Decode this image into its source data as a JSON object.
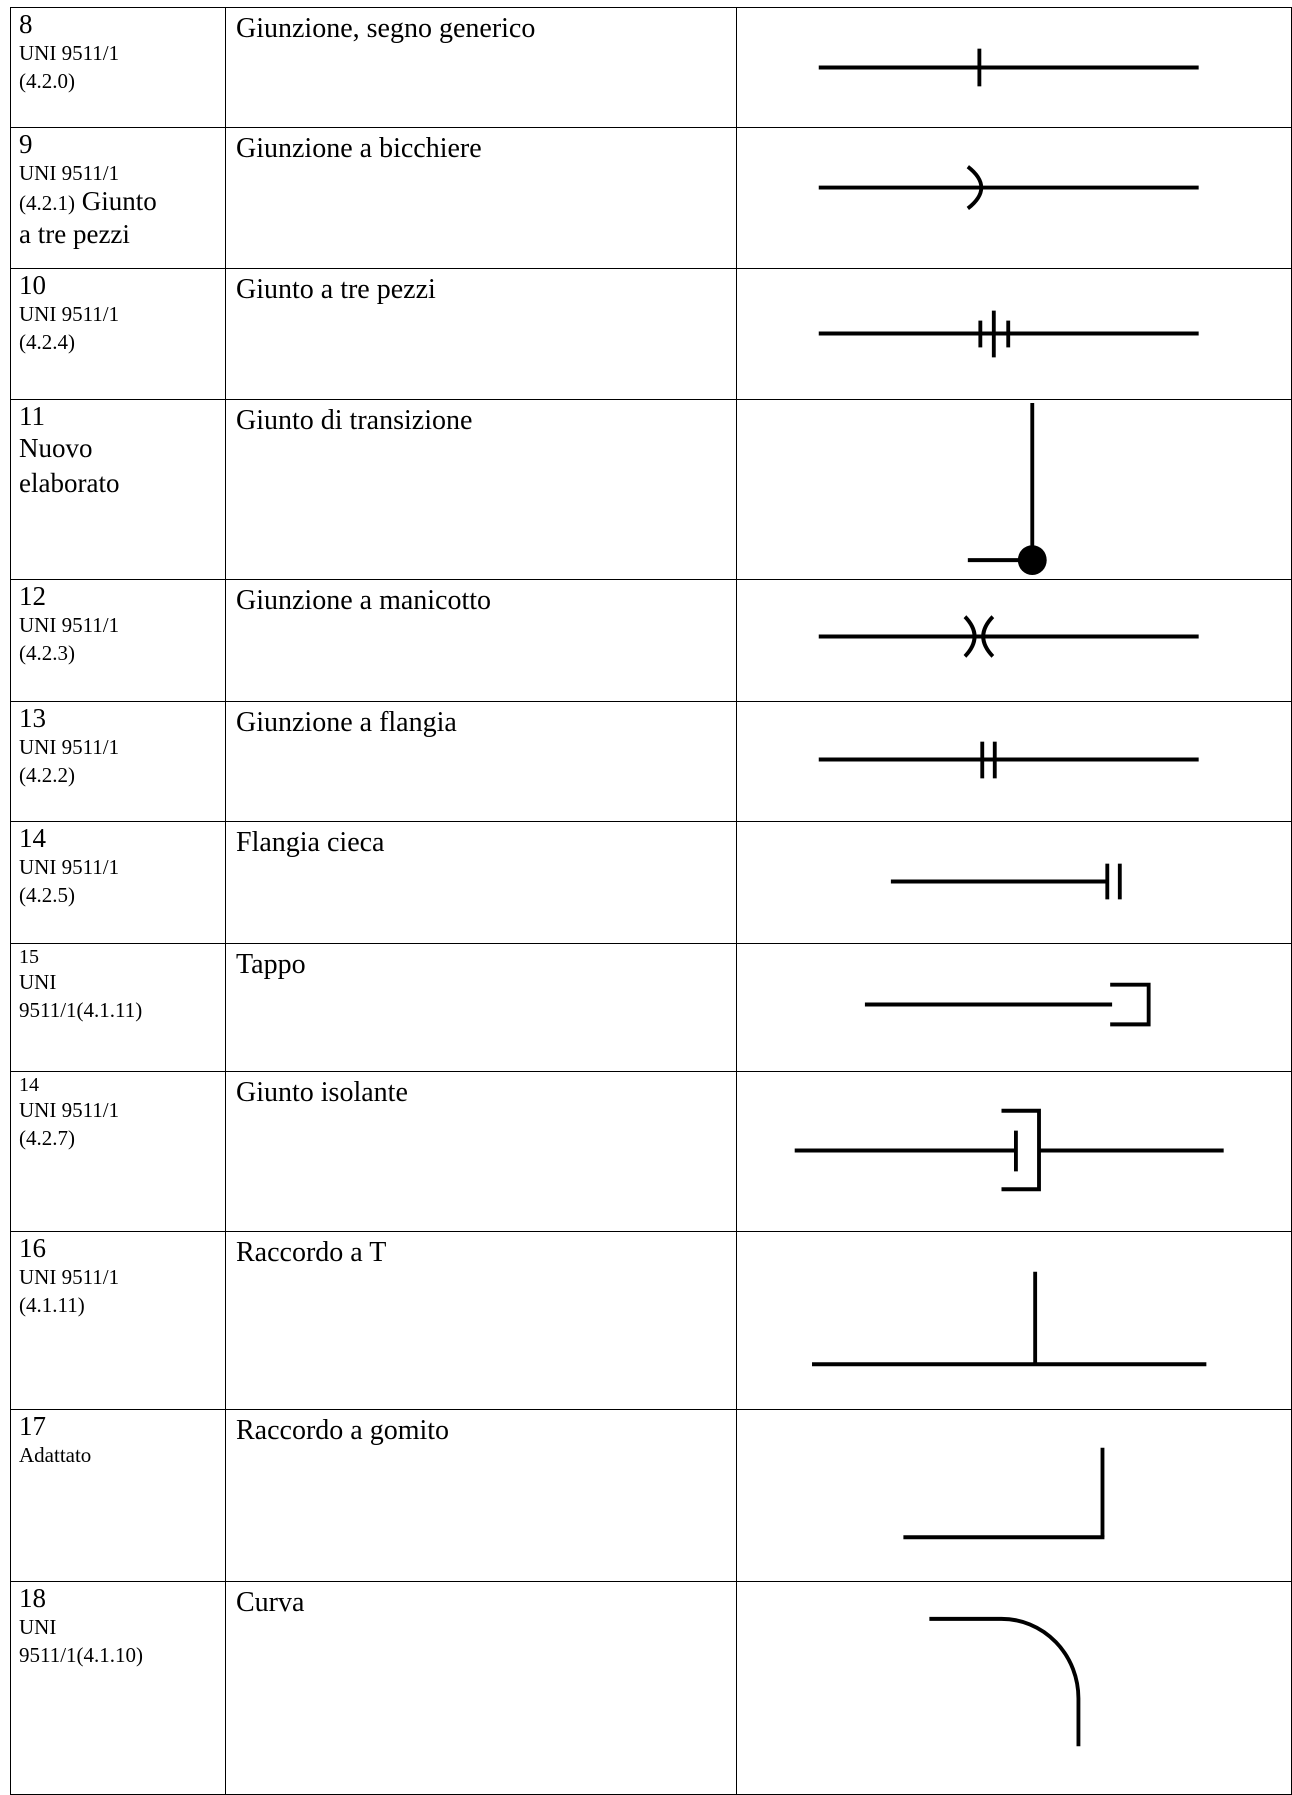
{
  "rows": [
    {
      "num": "8",
      "std": "UNI 9511/1",
      "std2": "(4.2.0)",
      "desc": "Giunzione, segno generico",
      "symbol": "generic-joint-icon"
    },
    {
      "num": "9",
      "std": "UNI 9511/1",
      "std2": "(4.2.1)",
      "std2_tail": " Giunto",
      "std3": "a tre pezzi",
      "desc": "Giunzione a bicchiere",
      "symbol": "socket-joint-icon"
    },
    {
      "num": "10",
      "std": "UNI 9511/1",
      "std2": "(4.2.4)",
      "desc": "Giunto a tre pezzi",
      "symbol": "three-piece-joint-icon"
    },
    {
      "num": "11",
      "std": "Nuovo",
      "std2": "elaborato",
      "desc": "Giunto di transizione",
      "symbol": "transition-joint-icon"
    },
    {
      "num": "12",
      "std": "UNI 9511/1",
      "std2": "(4.2.3)",
      "desc": "Giunzione a manicotto",
      "symbol": "sleeve-joint-icon"
    },
    {
      "num": "13",
      "std": "UNI 9511/1",
      "std2": "(4.2.2)",
      "desc": "Giunzione a flangia",
      "symbol": "flange-joint-icon"
    },
    {
      "num": "14",
      "std": "UNI 9511/1",
      "std2": "(4.2.5)",
      "desc": "Flangia cieca",
      "symbol": "blind-flange-icon"
    },
    {
      "num": "15",
      "std": "UNI",
      "std2": "9511/1(4.1.11)",
      "desc": "Tappo",
      "symbol": "cap-icon"
    },
    {
      "num": "14",
      "std": "UNI 9511/1",
      "std2": "(4.2.7)",
      "desc": "Giunto isolante",
      "symbol": "insulating-joint-icon"
    },
    {
      "num": "16",
      "std": "UNI 9511/1",
      "std2": "(4.1.11)",
      "desc": "Raccordo a T",
      "symbol": "tee-fitting-icon"
    },
    {
      "num": "17",
      "std": "Adattato",
      "desc": "Raccordo a gomito",
      "symbol": "elbow-fitting-icon"
    },
    {
      "num": "18",
      "std": "UNI",
      "std2": "9511/1(4.1.10)",
      "desc": "Curva",
      "symbol": "bend-icon"
    }
  ]
}
